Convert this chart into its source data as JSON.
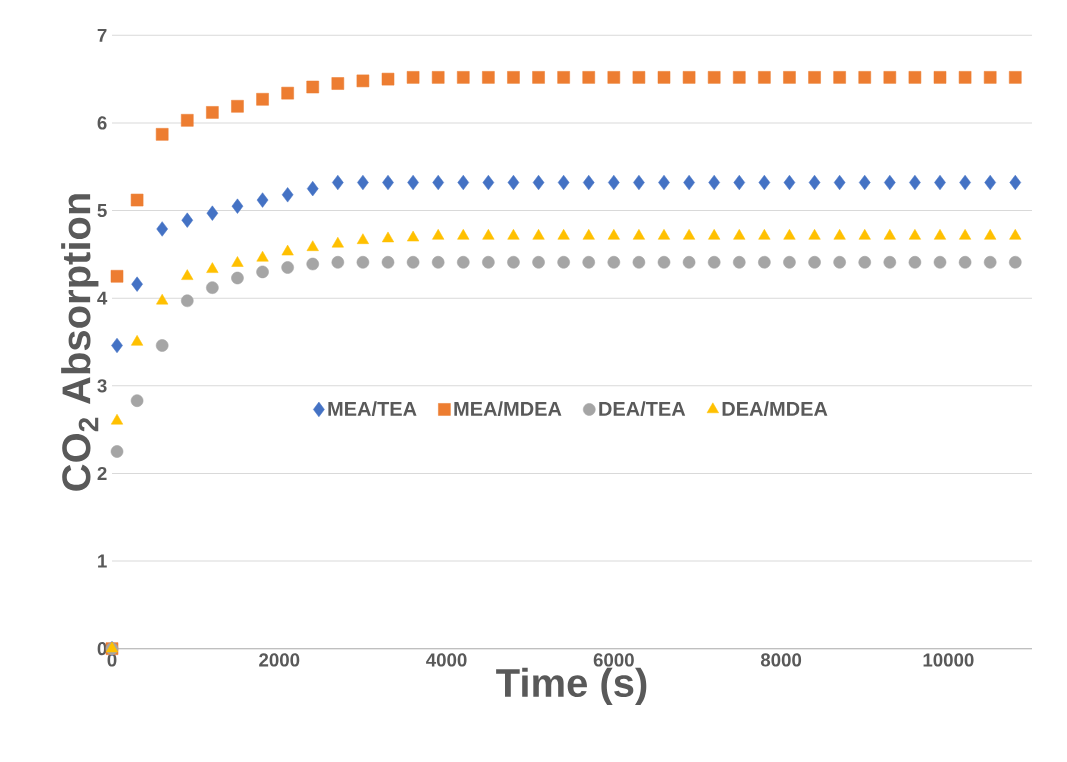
{
  "chart_data": {
    "type": "scatter",
    "xlabel": "Time (s)",
    "ylabel": "CO$_{2}$ Absorption",
    "x": [
      0,
      60,
      300,
      600,
      900,
      1200,
      1500,
      1800,
      2100,
      2400,
      2700,
      3000,
      3300,
      3600,
      3900,
      4200,
      4500,
      4800,
      5100,
      5400,
      5700,
      6000,
      6300,
      6600,
      6900,
      7200,
      7500,
      7800,
      8100,
      8400,
      8700,
      9000,
      9300,
      9600,
      9900,
      10200,
      10500,
      10800
    ],
    "series": [
      {
        "name": "MEA/TEA",
        "color": "#4472c4",
        "marker": "diamond",
        "values": [
          0,
          3.46,
          4.16,
          4.79,
          4.89,
          4.97,
          5.05,
          5.12,
          5.18,
          5.25,
          5.32,
          5.32,
          5.32,
          5.32,
          5.32,
          5.32,
          5.32,
          5.32,
          5.32,
          5.32,
          5.32,
          5.32,
          5.32,
          5.32,
          5.32,
          5.32,
          5.32,
          5.32,
          5.32,
          5.32,
          5.32,
          5.32,
          5.32,
          5.32,
          5.32,
          5.32,
          5.32,
          5.32
        ]
      },
      {
        "name": "MEA/MDEA",
        "color": "#ed7d31",
        "marker": "square",
        "values": [
          0,
          4.25,
          5.12,
          5.87,
          6.03,
          6.12,
          6.19,
          6.27,
          6.34,
          6.41,
          6.45,
          6.48,
          6.5,
          6.52,
          6.52,
          6.52,
          6.52,
          6.52,
          6.52,
          6.52,
          6.52,
          6.52,
          6.52,
          6.52,
          6.52,
          6.52,
          6.52,
          6.52,
          6.52,
          6.52,
          6.52,
          6.52,
          6.52,
          6.52,
          6.52,
          6.52,
          6.52,
          6.52
        ]
      },
      {
        "name": "DEA/TEA",
        "color": "#a5a5a5",
        "marker": "circle",
        "values": [
          0,
          2.25,
          2.83,
          3.46,
          3.97,
          4.12,
          4.23,
          4.3,
          4.35,
          4.39,
          4.41,
          4.41,
          4.41,
          4.41,
          4.41,
          4.41,
          4.41,
          4.41,
          4.41,
          4.41,
          4.41,
          4.41,
          4.41,
          4.41,
          4.41,
          4.41,
          4.41,
          4.41,
          4.41,
          4.41,
          4.41,
          4.41,
          4.41,
          4.41,
          4.41,
          4.41,
          4.41,
          4.41
        ]
      },
      {
        "name": "DEA/MDEA",
        "color": "#ffc000",
        "marker": "triangle",
        "values": [
          0,
          2.6,
          3.5,
          3.97,
          4.25,
          4.33,
          4.4,
          4.46,
          4.53,
          4.58,
          4.62,
          4.66,
          4.68,
          4.69,
          4.71,
          4.71,
          4.71,
          4.71,
          4.71,
          4.71,
          4.71,
          4.71,
          4.71,
          4.71,
          4.71,
          4.71,
          4.71,
          4.71,
          4.71,
          4.71,
          4.71,
          4.71,
          4.71,
          4.71,
          4.71,
          4.71,
          4.71,
          4.71
        ]
      }
    ],
    "xlim": [
      0,
      11000
    ],
    "ylim": [
      0,
      7
    ],
    "xticks": [
      0,
      2000,
      4000,
      6000,
      8000,
      10000
    ],
    "yticks": [
      0,
      1,
      2,
      3,
      4,
      5,
      6,
      7
    ],
    "grid": "y",
    "legend": "center"
  }
}
